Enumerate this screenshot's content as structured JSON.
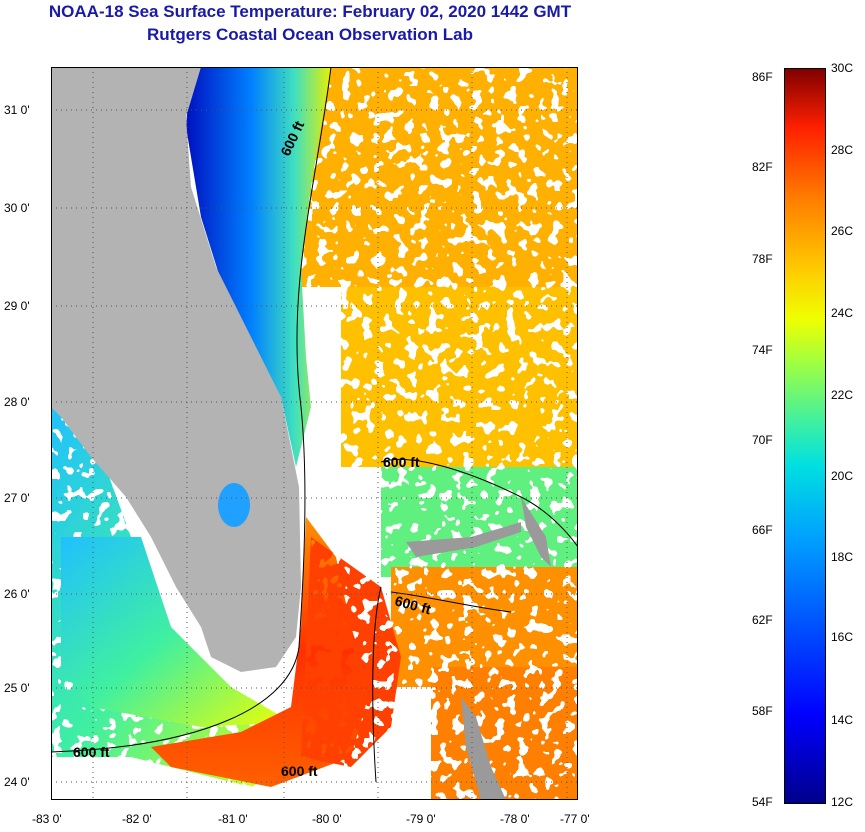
{
  "title": {
    "line1": "NOAA-18 Sea Surface Temperature:  February 02, 2020 1442 GMT",
    "line2": "Rutgers Coastal Ocean Observation Lab"
  },
  "map": {
    "lat_labels": [
      "31 0'",
      "30 0'",
      "29 0'",
      "28 0'",
      "27 0'",
      "26 0'",
      "25 0'",
      "24 0'"
    ],
    "lon_labels": [
      "-83 0'",
      "-82 0'",
      "-81 0'",
      "-80 0'",
      "-79 0'",
      "-78 0'",
      "-77 0'"
    ],
    "isobath_label": "600 ft"
  },
  "colorbar": {
    "fahrenheit_labels": [
      "86F",
      "82F",
      "78F",
      "74F",
      "70F",
      "66F",
      "62F",
      "58F",
      "54F"
    ],
    "celsius_labels": [
      "30C",
      "28C",
      "26C",
      "24C",
      "22C",
      "20C",
      "18C",
      "16C",
      "14C",
      "12C"
    ]
  },
  "colors": {
    "title": "#1a1aa8",
    "land": "#b3b3b3",
    "cold": "#0000c8",
    "warm": "#ff3000"
  }
}
